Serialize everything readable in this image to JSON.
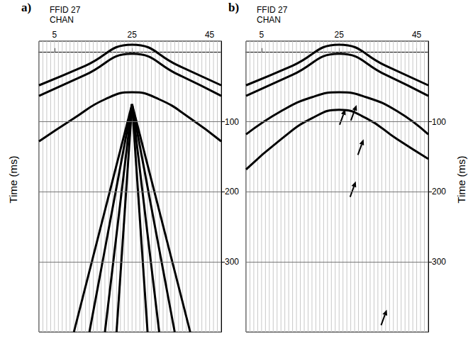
{
  "chart_data": [
    {
      "type": "line",
      "panel": "a)",
      "title": "FFID 27",
      "x_label": "CHAN",
      "y_label": "Time (ms)",
      "xlim": [
        1,
        48
      ],
      "xticks": [
        5,
        25,
        45
      ],
      "ylim": [
        -15,
        400
      ],
      "yticks": [
        100,
        200,
        300
      ],
      "grid": true,
      "channels": [
        1,
        2,
        3,
        4,
        5,
        6,
        7,
        8,
        9,
        10,
        11,
        12,
        13,
        14,
        15,
        16,
        17,
        18,
        19,
        20,
        21,
        22,
        23,
        24,
        25,
        26,
        27,
        28,
        29,
        30,
        31,
        32,
        33,
        34,
        35,
        36,
        37,
        38,
        39,
        40,
        41,
        42,
        43,
        44,
        45,
        46,
        47,
        48
      ],
      "series": [
        {
          "color": "#000000",
          "x": [
            1,
            13,
            25,
            37,
            48
          ],
          "values": [
            48,
            20,
            -10,
            20,
            48
          ]
        },
        {
          "color": "#000000",
          "x": [
            1,
            13,
            25,
            37,
            48
          ],
          "values": [
            63,
            33,
            3,
            33,
            63
          ]
        },
        {
          "color": "#000000",
          "x": [
            1,
            10,
            18,
            25,
            32,
            40,
            48
          ],
          "values": [
            128,
            95,
            68,
            58,
            68,
            95,
            128
          ]
        },
        {
          "color": "#000000",
          "x": [
            25,
            10
          ],
          "values": [
            75,
            400
          ]
        },
        {
          "color": "#000000",
          "x": [
            25,
            14
          ],
          "values": [
            75,
            400
          ]
        },
        {
          "color": "#000000",
          "x": [
            25,
            18
          ],
          "values": [
            75,
            400
          ]
        },
        {
          "color": "#000000",
          "x": [
            25,
            21
          ],
          "values": [
            75,
            400
          ]
        },
        {
          "color": "#000000",
          "x": [
            25,
            29
          ],
          "values": [
            75,
            400
          ]
        },
        {
          "color": "#000000",
          "x": [
            25,
            32
          ],
          "values": [
            75,
            400
          ]
        },
        {
          "color": "#000000",
          "x": [
            25,
            36
          ],
          "values": [
            75,
            400
          ]
        },
        {
          "color": "#000000",
          "x": [
            25,
            40
          ],
          "values": [
            75,
            400
          ]
        }
      ],
      "arrows": []
    },
    {
      "type": "line",
      "panel": "b)",
      "title": "FFID 27",
      "x_label": "CHAN",
      "y_label": "Time (ms)",
      "xlim": [
        1,
        48
      ],
      "xticks": [
        5,
        25,
        45
      ],
      "ylim": [
        -15,
        400
      ],
      "yticks": [
        100,
        200,
        300
      ],
      "grid": true,
      "channels": [
        1,
        2,
        3,
        4,
        5,
        6,
        7,
        8,
        9,
        10,
        11,
        12,
        13,
        14,
        15,
        16,
        17,
        18,
        19,
        20,
        21,
        22,
        23,
        24,
        25,
        26,
        27,
        28,
        29,
        30,
        31,
        32,
        33,
        34,
        35,
        36,
        37,
        38,
        39,
        40,
        41,
        42,
        43,
        44,
        45,
        46,
        47,
        48
      ],
      "series": [
        {
          "color": "#000000",
          "x": [
            1,
            13,
            25,
            37,
            48
          ],
          "values": [
            48,
            20,
            -10,
            20,
            48
          ]
        },
        {
          "color": "#000000",
          "x": [
            1,
            13,
            25,
            37,
            48
          ],
          "values": [
            63,
            33,
            3,
            33,
            63
          ]
        },
        {
          "color": "#000000",
          "x": [
            1,
            10,
            18,
            25,
            32,
            40,
            48
          ],
          "values": [
            118,
            85,
            65,
            58,
            65,
            85,
            118
          ]
        },
        {
          "color": "#000000",
          "x": [
            1,
            10,
            18,
            25,
            32,
            40,
            48
          ],
          "values": [
            168,
            125,
            95,
            83,
            95,
            125,
            153
          ]
        }
      ],
      "arrows": [
        {
          "x": 29.5,
          "y": 76
        },
        {
          "x": 26.6,
          "y": 82
        },
        {
          "x": 31.3,
          "y": 125
        },
        {
          "x": 29.3,
          "y": 185
        },
        {
          "x": 37.3,
          "y": 368
        }
      ]
    }
  ]
}
